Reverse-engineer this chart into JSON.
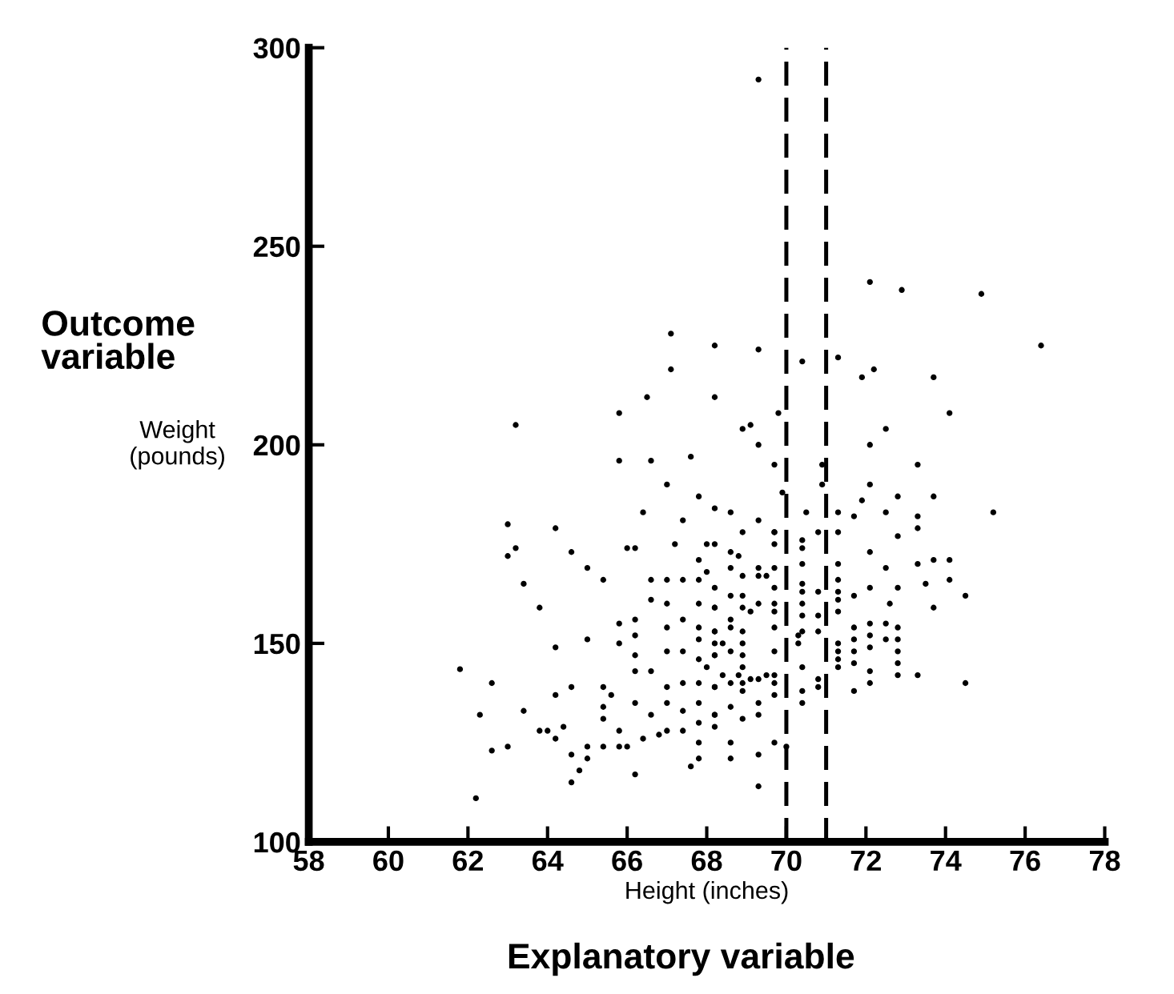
{
  "chart_data": {
    "type": "scatter",
    "xlabel": "Height (inches)",
    "ylabel": "Weight\n(pounds)",
    "annotations": [
      "Outcome\nvariable",
      "Explanatory variable"
    ],
    "xlim": [
      58,
      78
    ],
    "xticks": [
      58,
      60,
      62,
      64,
      66,
      68,
      70,
      72,
      74,
      76,
      78
    ],
    "ylim": [
      100,
      300
    ],
    "yticks": [
      100,
      150,
      200,
      250,
      300
    ],
    "grid": false,
    "legend": false,
    "marker": "circle",
    "ref_lines": [
      {
        "axis": "x",
        "value": 70,
        "color": "#000000",
        "line_style": "dashed"
      },
      {
        "axis": "x",
        "value": 71,
        "color": "#000000",
        "line_style": "dashed"
      }
    ],
    "series": [
      {
        "color": "#000000",
        "x": [
          63.2,
          67.1,
          68.2,
          67.1,
          66.5,
          68.2,
          65.8,
          65.8,
          66.6,
          67.6,
          67.0,
          67.8,
          68.2,
          63.0,
          64.2,
          63.2,
          66.4,
          67.4,
          72.1,
          72.9,
          74.9,
          76.4,
          69.3,
          70.4,
          71.3,
          72.2,
          71.9,
          73.7,
          74.1,
          69.8,
          68.9,
          69.1,
          72.5,
          72.1,
          73.3,
          69.3,
          69.7,
          70.9,
          69.9,
          70.9,
          72.1,
          72.8,
          73.7,
          71.9,
          75.2,
          73.3,
          72.5,
          71.7,
          71.3,
          70.5,
          69.3,
          68.6,
          72.8,
          73.3,
          71.3,
          69.7,
          69.3,
          63.0,
          63.4,
          63.8,
          64.6,
          65.0,
          65.4,
          66.0,
          66.2,
          61.8,
          62.6,
          62.3,
          63.4,
          62.6,
          62.2,
          63.0,
          64.2,
          64.2,
          64.6,
          63.8,
          64.0,
          64.2,
          64.4,
          64.6,
          64.8,
          64.6,
          65.0,
          65.0,
          65.4,
          65.8,
          66.0,
          66.2,
          66.4,
          65.0,
          65.4,
          65.4,
          65.4,
          65.6,
          65.8,
          65.8,
          65.8,
          66.2,
          66.2,
          66.2,
          66.2,
          66.2,
          66.6,
          66.6,
          66.6,
          66.6,
          66.8,
          67.0,
          67.0,
          67.0,
          67.0,
          67.0,
          67.0,
          67.0,
          67.4,
          67.4,
          67.4,
          67.4,
          67.4,
          67.4,
          67.8,
          67.8,
          67.8,
          67.8,
          67.8,
          67.8,
          67.8,
          67.8,
          67.8,
          67.8,
          67.8,
          67.6,
          67.2,
          68.0,
          68.2,
          68.2,
          68.2,
          68.2,
          68.2,
          68.2,
          68.9,
          68.6,
          68.8,
          68.0,
          68.6,
          68.9,
          69.3,
          69.3,
          69.5,
          69.7,
          69.7,
          69.7,
          68.2,
          68.6,
          68.9,
          69.3,
          68.9,
          69.1,
          69.7,
          69.7,
          69.7,
          69.7,
          68.2,
          68.6,
          68.6,
          68.9,
          68.9,
          68.9,
          68.9,
          68.2,
          68.2,
          68.2,
          68.4,
          68.6,
          68.0,
          68.4,
          68.6,
          68.8,
          68.9,
          69.1,
          69.3,
          69.5,
          69.7,
          69.7,
          69.7,
          69.7,
          68.2,
          68.9,
          68.6,
          69.3,
          69.3,
          68.9,
          68.2,
          68.2,
          68.6,
          68.6,
          69.3,
          69.7,
          69.3,
          70.0,
          70.4,
          70.4,
          70.4,
          70.4,
          70.4,
          70.4,
          70.4,
          70.4,
          70.3,
          70.3,
          70.4,
          70.4,
          70.4,
          70.8,
          70.8,
          70.8,
          70.8,
          70.8,
          70.8,
          71.3,
          71.3,
          71.3,
          71.3,
          71.3,
          71.3,
          71.3,
          71.3,
          71.3,
          71.7,
          71.7,
          71.7,
          71.7,
          71.7,
          71.7,
          72.1,
          72.1,
          72.1,
          72.1,
          72.1,
          72.1,
          72.1,
          72.5,
          72.6,
          72.5,
          72.5,
          72.8,
          72.8,
          72.8,
          72.8,
          72.8,
          72.8,
          73.3,
          73.3,
          73.5,
          73.7,
          73.7,
          74.1,
          74.1,
          74.5,
          74.5
        ],
        "values": [
          205,
          228,
          225,
          219,
          212,
          212,
          208,
          196,
          196,
          197,
          190,
          187,
          184,
          180,
          179,
          174,
          183,
          181,
          241,
          239,
          238,
          225,
          224,
          221,
          222,
          219,
          217,
          217,
          208,
          208,
          204,
          205,
          204,
          200,
          195,
          200,
          195,
          195,
          188,
          190,
          190,
          187,
          187,
          186,
          183,
          182,
          183,
          182,
          183,
          183,
          181,
          183,
          177,
          179,
          178,
          178,
          292,
          172,
          165,
          159,
          173,
          169,
          166,
          174,
          174,
          143.5,
          140,
          132,
          133,
          123,
          111,
          124,
          149,
          137,
          139,
          128,
          128,
          126,
          129,
          122,
          118,
          115,
          124,
          121,
          124,
          124,
          124,
          117,
          126,
          151,
          139,
          134,
          131,
          137,
          128,
          155,
          150,
          156,
          152,
          147,
          143,
          135,
          166,
          161,
          143,
          132,
          127,
          166,
          160,
          154,
          148,
          139,
          135,
          128,
          166,
          156,
          148,
          140,
          133,
          128,
          171,
          166,
          160,
          154,
          151,
          146,
          140,
          135,
          130,
          125,
          121,
          119,
          175,
          175,
          159,
          153,
          147,
          139,
          132,
          175,
          178,
          173,
          172,
          168,
          169,
          167,
          169,
          167,
          167,
          169,
          178,
          175,
          164,
          162,
          162,
          160,
          159,
          158,
          164,
          160,
          158,
          154,
          159,
          156,
          154,
          153,
          150,
          147,
          144,
          153,
          150,
          147,
          150,
          148,
          144,
          142,
          140,
          142,
          140,
          141,
          141,
          142,
          148,
          142,
          140,
          137,
          139,
          138,
          134,
          135,
          132,
          131,
          132,
          129,
          125,
          121,
          122,
          125,
          114,
          124,
          176,
          174,
          170,
          165,
          163,
          160,
          157,
          153,
          152,
          150,
          144,
          138,
          135,
          178,
          163,
          157,
          153,
          141,
          139,
          170,
          166,
          163,
          161,
          158,
          150,
          148,
          146,
          144,
          162,
          154,
          151,
          148,
          145,
          138,
          173,
          164,
          155,
          152,
          149,
          143,
          140,
          169,
          160,
          155,
          151,
          164,
          154,
          151,
          148,
          145,
          142,
          142,
          170,
          165,
          171,
          159,
          171,
          166,
          162,
          140
        ]
      }
    ]
  }
}
